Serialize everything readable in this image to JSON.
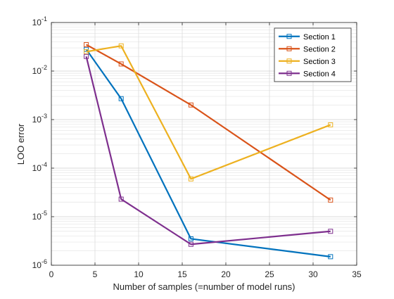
{
  "chart_data": {
    "type": "line",
    "title": "",
    "xlabel": "Number of samples (=number of model runs)",
    "ylabel": "LOO error",
    "xscale": "linear",
    "yscale": "log",
    "xlim": [
      0,
      35
    ],
    "ylim": [
      1e-06,
      0.1
    ],
    "xticks": [
      0,
      5,
      10,
      15,
      20,
      25,
      30,
      35
    ],
    "xtick_labels": [
      "0",
      "5",
      "10",
      "15",
      "20",
      "25",
      "30",
      "35"
    ],
    "yticks": [
      1e-06,
      1e-05,
      0.0001,
      0.001,
      0.01,
      0.1
    ],
    "ytick_labels": [
      {
        "base": "10",
        "exp": "-6"
      },
      {
        "base": "10",
        "exp": "-5"
      },
      {
        "base": "10",
        "exp": "-4"
      },
      {
        "base": "10",
        "exp": "-3"
      },
      {
        "base": "10",
        "exp": "-2"
      },
      {
        "base": "10",
        "exp": "-1"
      }
    ],
    "grid": true,
    "minor_grid": true,
    "legend_position": "top-right",
    "marker": "square",
    "x": [
      4,
      8,
      16,
      32
    ],
    "series": [
      {
        "name": "Section 1",
        "color": "#0072BD",
        "values": [
          0.028,
          0.0027,
          3.5e-06,
          1.5e-06
        ]
      },
      {
        "name": "Section 2",
        "color": "#D95319",
        "values": [
          0.035,
          0.014,
          0.002,
          2.2e-05
        ]
      },
      {
        "name": "Section 3",
        "color": "#EDB120",
        "values": [
          0.025,
          0.033,
          6e-05,
          0.00078
        ]
      },
      {
        "name": "Section 4",
        "color": "#7E2F8E",
        "values": [
          0.02,
          2.3e-05,
          2.7e-06,
          5e-06
        ]
      }
    ]
  }
}
